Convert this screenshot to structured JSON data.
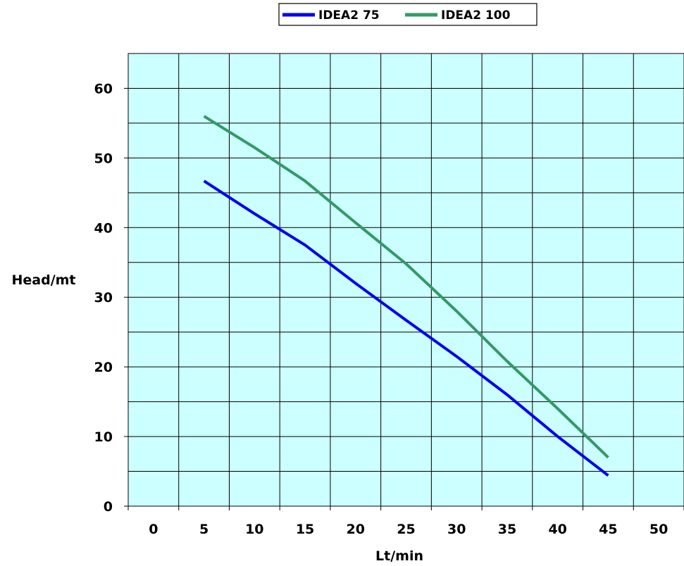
{
  "chart_data": {
    "type": "line",
    "xlabel": "Lt/min",
    "ylabel": "Head/mt",
    "x_categories": [
      "0",
      "5",
      "10",
      "15",
      "20",
      "25",
      "30",
      "35",
      "40",
      "45",
      "50"
    ],
    "y_ticks": [
      0,
      10,
      20,
      30,
      40,
      50,
      60
    ],
    "ylim": [
      0,
      65
    ],
    "grid": true,
    "plot_background": "#ccffff",
    "legend_position": "top",
    "series": [
      {
        "name": "IDEA2 75",
        "color": "#0000ee",
        "x": [
          5,
          10,
          15,
          20,
          25,
          30,
          35,
          40,
          45
        ],
        "y": [
          46.7,
          42.0,
          37.5,
          32.0,
          26.7,
          21.5,
          16.0,
          10.0,
          4.4
        ]
      },
      {
        "name": "IDEA2 100",
        "color": "#339966",
        "x": [
          5,
          10,
          15,
          20,
          25,
          30,
          35,
          40,
          45
        ],
        "y": [
          56.0,
          51.5,
          46.7,
          40.7,
          34.8,
          28.0,
          20.8,
          14.0,
          7.0
        ]
      }
    ]
  }
}
